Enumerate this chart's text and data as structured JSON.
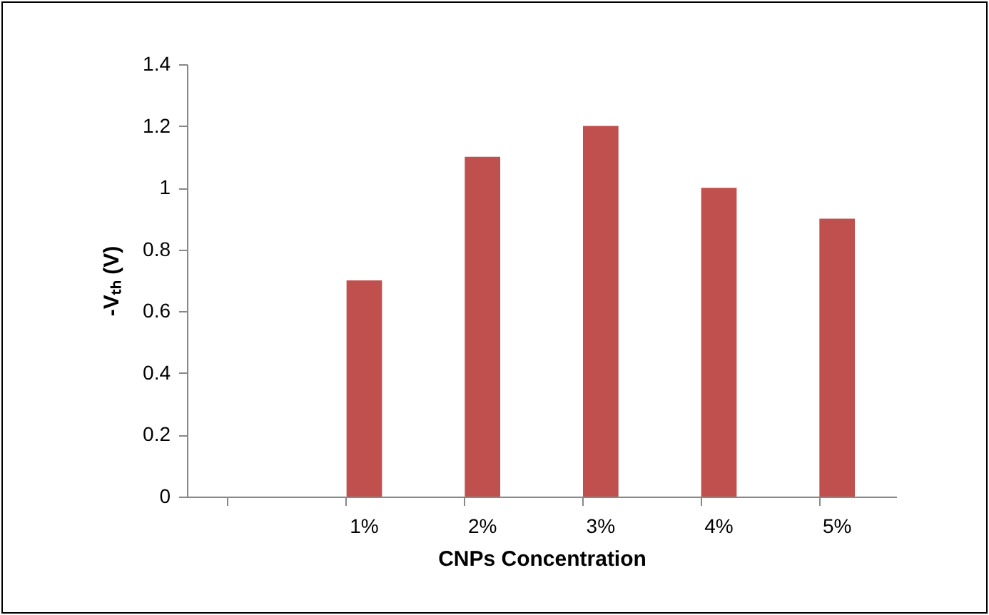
{
  "chart_data": {
    "type": "bar",
    "xlabel": "CNPs Concentration",
    "ylabel": "-Vₜₕ (V)",
    "categories": [
      null,
      "1%",
      "2%",
      "3%",
      "4%",
      "5%"
    ],
    "values": [
      null,
      0.7,
      1.1,
      1.2,
      1.0,
      0.9
    ],
    "color": "#c0504d",
    "ylim": [
      0,
      1.4
    ],
    "yticks": [
      0,
      0.2,
      0.4,
      0.6,
      0.8,
      1,
      1.2,
      1.4
    ],
    "grid": false
  }
}
